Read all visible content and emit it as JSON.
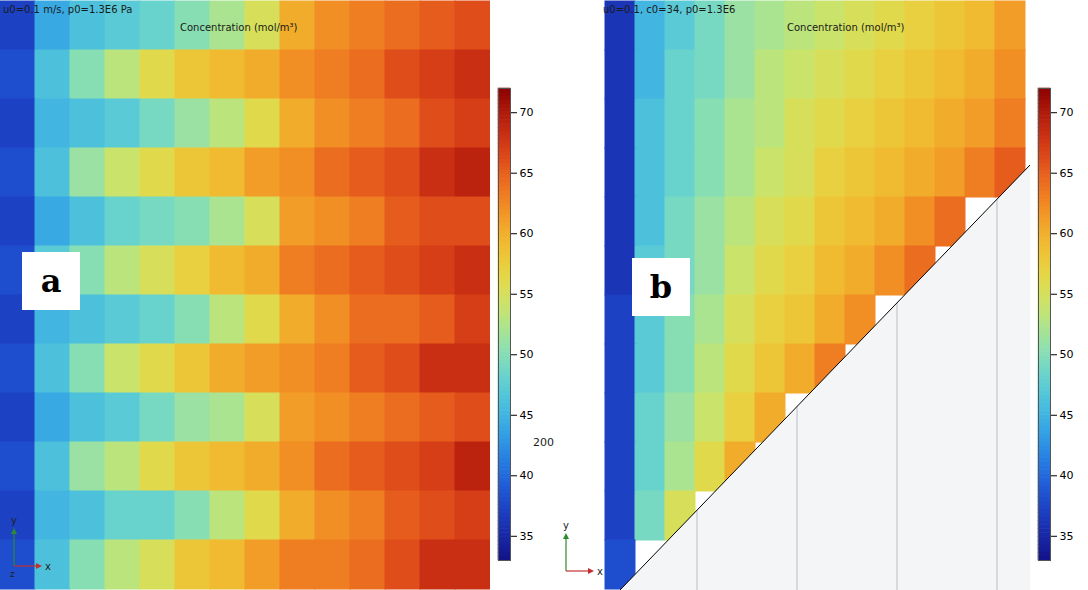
{
  "chart_data": [
    {
      "type": "heatmap",
      "panel": "a",
      "subtitle": "u0=0.1 m/s, p0=1.3E6 Pa",
      "title": "Concentration (mol/m³)",
      "axis_triad": [
        "y",
        "z",
        "x"
      ],
      "annotations": [
        "200"
      ],
      "color_range": [
        33,
        72
      ],
      "color_ticks": [
        35,
        40,
        45,
        50,
        55,
        60,
        65,
        70
      ],
      "cells": [
        [
          37,
          44,
          46,
          47,
          48,
          50,
          52,
          55,
          60,
          62,
          63,
          64,
          65,
          66
        ],
        [
          38,
          46,
          50,
          53,
          56,
          58,
          59,
          60,
          62,
          63,
          64,
          66,
          67,
          68
        ],
        [
          37,
          45,
          46,
          47,
          49,
          51,
          53,
          56,
          60,
          62,
          63,
          64,
          66,
          67
        ],
        [
          38,
          46,
          51,
          54,
          56,
          58,
          59,
          61,
          62,
          64,
          65,
          66,
          68,
          69
        ],
        [
          37,
          44,
          46,
          48,
          49,
          50,
          52,
          55,
          61,
          62,
          63,
          65,
          66,
          66
        ],
        [
          38,
          47,
          50,
          53,
          55,
          57,
          59,
          60,
          63,
          64,
          65,
          66,
          67,
          68
        ],
        [
          37,
          45,
          46,
          47,
          48,
          50,
          53,
          56,
          60,
          62,
          64,
          64,
          65,
          67
        ],
        [
          38,
          46,
          50,
          54,
          56,
          58,
          60,
          61,
          62,
          63,
          65,
          66,
          68,
          68
        ],
        [
          37,
          44,
          46,
          47,
          49,
          51,
          52,
          55,
          61,
          62,
          63,
          64,
          65,
          66
        ],
        [
          38,
          46,
          51,
          53,
          56,
          58,
          59,
          60,
          62,
          64,
          65,
          66,
          67,
          69
        ],
        [
          37,
          45,
          46,
          48,
          48,
          50,
          53,
          56,
          60,
          62,
          63,
          65,
          66,
          67
        ],
        [
          38,
          46,
          50,
          53,
          55,
          58,
          59,
          61,
          63,
          63,
          64,
          66,
          68,
          68
        ]
      ]
    },
    {
      "type": "heatmap",
      "panel": "b",
      "subtitle": "u0=0.1, c0=34, p0=1.3E6",
      "title": "Concentration (mol/m³)",
      "axis_triad": [
        "y",
        "x"
      ],
      "color_range": [
        33,
        72
      ],
      "color_ticks": [
        35,
        40,
        45,
        50,
        55,
        60,
        65,
        70
      ],
      "cells": [
        [
          36,
          45,
          47,
          49,
          51,
          52,
          53,
          54,
          55,
          56,
          57,
          58,
          59,
          61
        ],
        [
          36,
          45,
          48,
          49,
          51,
          53,
          54,
          55,
          56,
          57,
          58,
          59,
          60,
          62
        ],
        [
          36,
          46,
          48,
          50,
          52,
          53,
          55,
          56,
          57,
          58,
          59,
          60,
          61,
          63
        ],
        [
          36,
          46,
          48,
          50,
          52,
          54,
          55,
          57,
          58,
          59,
          60,
          61,
          63,
          65
        ],
        [
          36,
          46,
          49,
          51,
          53,
          55,
          56,
          58,
          59,
          60,
          62,
          64,
          null,
          null
        ],
        [
          36,
          47,
          49,
          51,
          54,
          56,
          57,
          59,
          60,
          62,
          64,
          null,
          null,
          null
        ],
        [
          37,
          47,
          50,
          52,
          55,
          57,
          58,
          60,
          62,
          null,
          null,
          null,
          null,
          null
        ],
        [
          37,
          47,
          50,
          53,
          56,
          58,
          60,
          63,
          null,
          null,
          null,
          null,
          null,
          null
        ],
        [
          37,
          48,
          51,
          54,
          57,
          60,
          null,
          null,
          null,
          null,
          null,
          null,
          null,
          null
        ],
        [
          37,
          48,
          52,
          56,
          60,
          null,
          null,
          null,
          null,
          null,
          null,
          null,
          null,
          null
        ],
        [
          37,
          49,
          55,
          null,
          null,
          null,
          null,
          null,
          null,
          null,
          null,
          null,
          null,
          null
        ],
        [
          38,
          null,
          null,
          null,
          null,
          null,
          null,
          null,
          null,
          null,
          null,
          null,
          null,
          null
        ]
      ]
    }
  ]
}
